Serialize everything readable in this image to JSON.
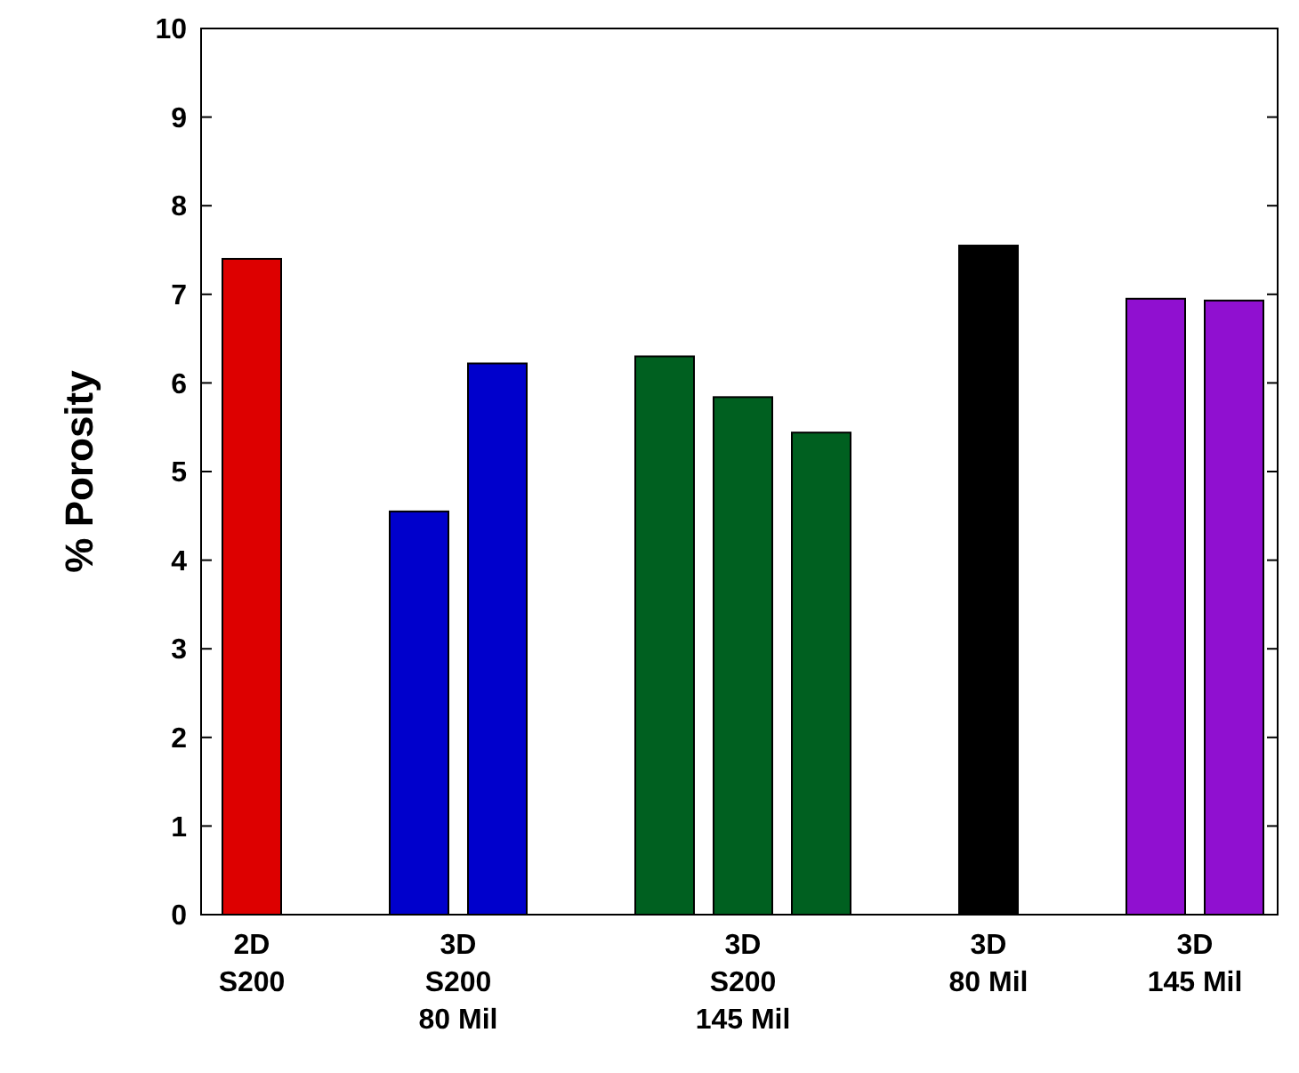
{
  "chart_data": {
    "type": "bar",
    "ylabel": "% Porosity",
    "categories": [
      "2D\nS200",
      "3D\nS200\n80 Mil",
      "3D\nS200\n145 Mil",
      "3D\n80 Mil",
      "3D\n145 Mil"
    ],
    "series": [
      {
        "values": [
          7.4,
          4.55,
          6.3,
          7.55,
          6.95
        ],
        "colors": [
          "#dd0000",
          "#0000cc",
          "#006020",
          "#000000",
          "#9010d0"
        ]
      },
      {
        "values": [
          null,
          6.22,
          5.84,
          null,
          6.93
        ],
        "colors": [
          null,
          "#0000cc",
          "#006020",
          null,
          "#9010d0"
        ]
      },
      {
        "values": [
          null,
          null,
          5.44,
          null,
          null
        ],
        "colors": [
          null,
          null,
          "#006020",
          null,
          null
        ]
      }
    ],
    "ylim": [
      0,
      10
    ],
    "yticks": [
      0,
      1,
      2,
      3,
      4,
      5,
      6,
      7,
      8,
      9,
      10
    ],
    "grid": false
  }
}
